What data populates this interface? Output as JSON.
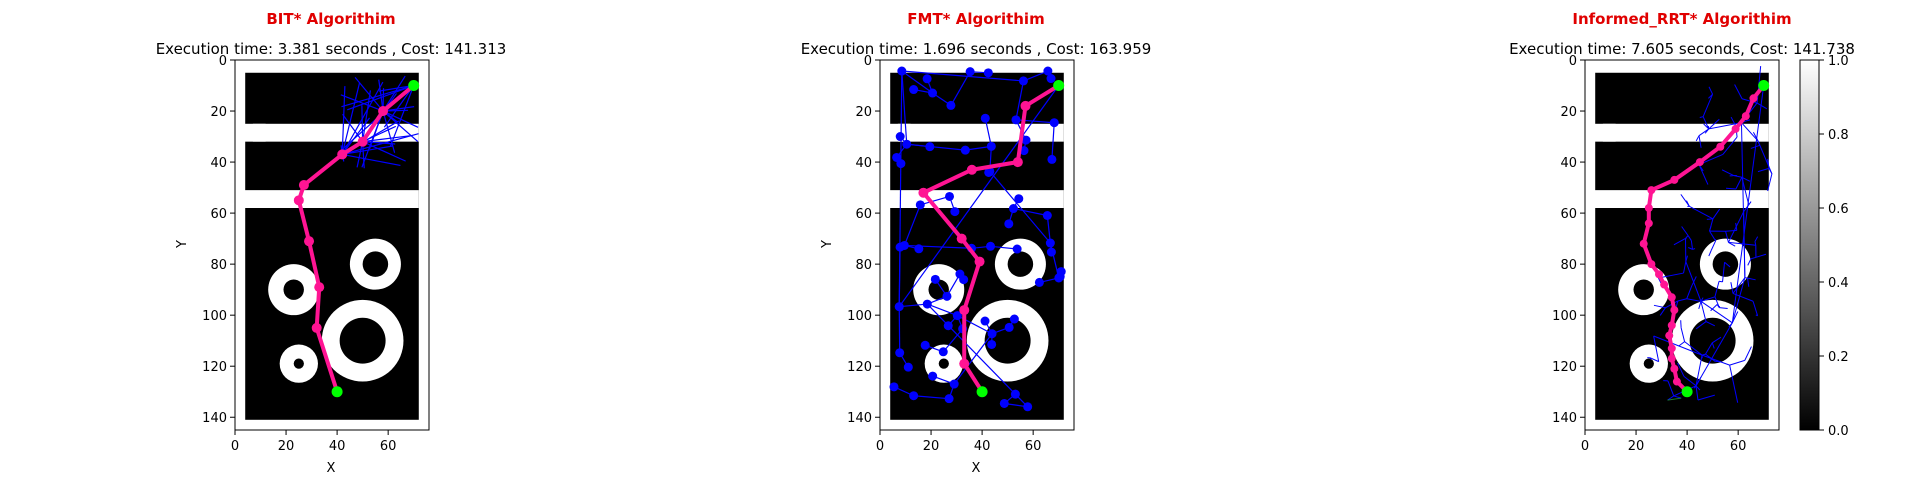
{
  "chart_data": [
    {
      "type": "scatter",
      "title": "BIT* Algorithim",
      "subtitle": "Execution time: 3.381 seconds , Cost: 141.313",
      "xlabel": "X",
      "ylabel": "Y",
      "xlim": [
        0,
        76
      ],
      "ylim": [
        145,
        0
      ],
      "xticks": [
        0,
        20,
        40,
        60
      ],
      "yticks": [
        0,
        20,
        40,
        60,
        80,
        100,
        120,
        140
      ],
      "start": [
        70,
        10
      ],
      "goal": [
        40,
        130
      ],
      "path": [
        [
          70,
          10
        ],
        [
          58,
          20
        ],
        [
          50,
          32
        ],
        [
          42,
          37
        ],
        [
          27,
          49
        ],
        [
          25,
          55
        ],
        [
          29,
          71
        ],
        [
          33,
          89
        ],
        [
          32,
          105
        ],
        [
          40,
          130
        ]
      ],
      "tree_color": "#0000ff",
      "path_color": "#ff1493",
      "endpoint_color": "#00ff00"
    },
    {
      "type": "scatter",
      "title": "FMT* Algorithim",
      "subtitle": "Execution time: 1.696 seconds , Cost: 163.959",
      "xlabel": "X",
      "ylabel": "Y",
      "xlim": [
        0,
        76
      ],
      "ylim": [
        145,
        0
      ],
      "xticks": [
        0,
        20,
        40,
        60
      ],
      "yticks": [
        0,
        20,
        40,
        60,
        80,
        100,
        120,
        140
      ],
      "start": [
        70,
        10
      ],
      "goal": [
        40,
        130
      ],
      "path": [
        [
          70,
          10
        ],
        [
          57,
          18
        ],
        [
          54,
          40
        ],
        [
          36,
          43
        ],
        [
          17,
          52
        ],
        [
          32,
          70
        ],
        [
          39,
          79
        ],
        [
          33,
          98
        ],
        [
          33,
          119
        ],
        [
          40,
          130
        ]
      ],
      "tree_color": "#0000ff",
      "path_color": "#ff1493",
      "endpoint_color": "#00ff00"
    },
    {
      "type": "scatter",
      "title": "Informed_RRT* Algorithim",
      "subtitle": "Execution time: 7.605 seconds, Cost: 141.738",
      "xlabel": "",
      "ylabel": "",
      "xlim": [
        0,
        76
      ],
      "ylim": [
        145,
        0
      ],
      "xticks": [
        0,
        20,
        40,
        60
      ],
      "yticks": [
        0,
        20,
        40,
        60,
        80,
        100,
        120,
        140
      ],
      "start": [
        70,
        10
      ],
      "goal": [
        40,
        130
      ],
      "path": [
        [
          70,
          10
        ],
        [
          66,
          15
        ],
        [
          63,
          22
        ],
        [
          59,
          27
        ],
        [
          53,
          34
        ],
        [
          45,
          40
        ],
        [
          35,
          47
        ],
        [
          26,
          51
        ],
        [
          25,
          58
        ],
        [
          25,
          64
        ],
        [
          23,
          72
        ],
        [
          26,
          80
        ],
        [
          29,
          84
        ],
        [
          31,
          88
        ],
        [
          34,
          93
        ],
        [
          35,
          98
        ],
        [
          34,
          104
        ],
        [
          33,
          108
        ],
        [
          34,
          113
        ],
        [
          34,
          117
        ],
        [
          35,
          121
        ],
        [
          36,
          126
        ],
        [
          40,
          130
        ]
      ],
      "tree_color": "#0000ff",
      "path_color": "#ff1493",
      "endpoint_color": "#00ff00",
      "colorbar": {
        "ticks": [
          0.0,
          0.2,
          0.4,
          0.6,
          0.8,
          1.0
        ],
        "tick_labels": [
          "0.0",
          "0.2",
          "0.4",
          "0.6",
          "0.8",
          "1.0"
        ],
        "cmap": "gray"
      }
    }
  ],
  "map": {
    "width": 76,
    "height": 145,
    "obstacle_color": "#000000",
    "free_color": "#ffffff",
    "free_rects": [
      [
        0,
        0,
        76,
        5
      ],
      [
        0,
        0,
        4,
        145
      ],
      [
        72,
        0,
        4,
        145
      ],
      [
        0,
        141,
        76,
        4
      ],
      [
        0,
        25,
        72,
        7
      ],
      [
        0,
        51,
        72,
        7
      ],
      [
        7,
        25,
        5,
        7
      ]
    ],
    "rings": [
      {
        "cx": 55,
        "cy": 80,
        "r_outer": 10,
        "r_inner": 5
      },
      {
        "cx": 23,
        "cy": 90,
        "r_outer": 10,
        "r_inner": 4
      },
      {
        "cx": 50,
        "cy": 110,
        "r_outer": 16,
        "r_inner": 9
      },
      {
        "cx": 25,
        "cy": 119,
        "r_outer": 7.5,
        "r_inner": 2
      }
    ]
  },
  "title_color": "#e00000"
}
